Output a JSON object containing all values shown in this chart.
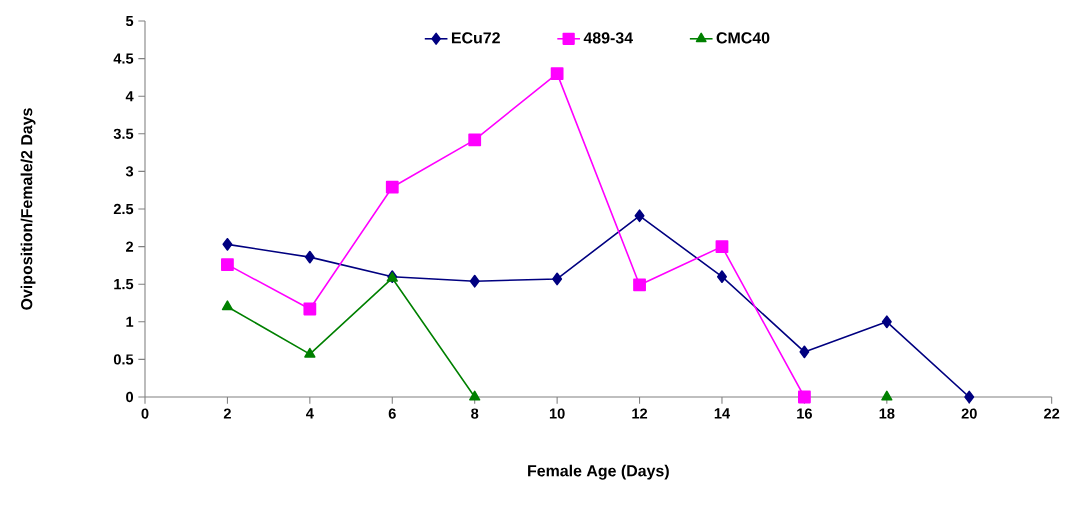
{
  "chart_data": {
    "type": "line",
    "xlabel": "Female Age (Days)",
    "ylabel": "Oviposition/Female/2 Days",
    "x": [
      2,
      4,
      6,
      8,
      10,
      12,
      14,
      16,
      18,
      20
    ],
    "series": [
      {
        "name": "ECu72",
        "color": "#000080",
        "marker": "diamond",
        "values": [
          2.03,
          1.86,
          1.6,
          1.54,
          1.57,
          2.41,
          1.6,
          0.6,
          1.0,
          0
        ]
      },
      {
        "name": "489-34",
        "color": "#ff00ff",
        "marker": "square",
        "values": [
          1.76,
          1.17,
          2.79,
          3.42,
          4.3,
          1.49,
          2.0,
          0,
          null,
          null
        ]
      },
      {
        "name": "CMC40",
        "color": "#008000",
        "marker": "triangle",
        "values": [
          1.2,
          0.57,
          1.58,
          0,
          null,
          null,
          null,
          null,
          0,
          null
        ]
      }
    ],
    "xlim": [
      0,
      22
    ],
    "xticks": [
      0,
      2,
      4,
      6,
      8,
      10,
      12,
      14,
      16,
      18,
      20,
      22
    ],
    "ylim": [
      0,
      5
    ],
    "yticks": [
      0,
      0.5,
      1,
      1.5,
      2,
      2.5,
      3,
      3.5,
      4,
      4.5,
      5
    ],
    "grid": false,
    "legend": "top"
  }
}
